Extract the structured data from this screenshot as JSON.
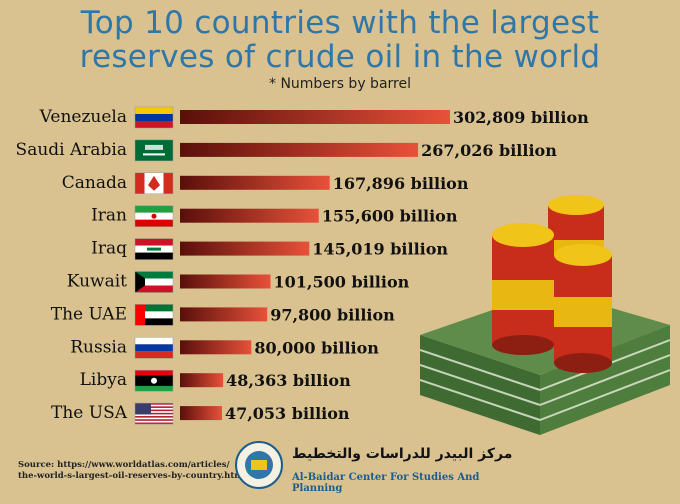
{
  "title_line1": "Top 10 countries with the largest",
  "title_line2": "reserves of crude oil in the world",
  "subtitle": "* Numbers by barrel",
  "source_line1": "Source: https://www.worldatlas.com/articles/",
  "source_line2": "the-world-s-largest-oil-reserves-by-country.html",
  "org_arabic": "مركز البيدر للدراسات والتخطيط",
  "org_english": "Al-Baidar Center For Studies And Planning",
  "colors": {
    "title": "#2f77a8",
    "bar_start": "#5a0f0a",
    "bar_end": "#e8513a",
    "background": "#d9c290"
  },
  "chart_data": {
    "type": "bar",
    "orientation": "horizontal",
    "categories": [
      "Venezuela",
      "Saudi Arabia",
      "Canada",
      "Iran",
      "Iraq",
      "Kuwait",
      "The UAE",
      "Russia",
      "Libya",
      "The USA"
    ],
    "values": [
      302809,
      267026,
      167896,
      155600,
      145019,
      101500,
      97800,
      80000,
      48363,
      47053
    ],
    "data_labels": [
      "302,809 billion",
      "267,026 billion",
      "167,896 billion",
      "155,600 billion",
      "145,019 billion",
      "101,500 billion",
      "97,800 billion",
      "80,000 billion",
      "48,363 billion",
      "47,053 billion"
    ],
    "flags": [
      "venezuela-flag-icon",
      "saudi-arabia-flag-icon",
      "canada-flag-icon",
      "iran-flag-icon",
      "iraq-flag-icon",
      "kuwait-flag-icon",
      "uae-flag-icon",
      "russia-flag-icon",
      "libya-flag-icon",
      "usa-flag-icon"
    ],
    "title": "Top 10 countries with the largest reserves of crude oil in the world",
    "xlabel": "",
    "ylabel": "",
    "grid": false,
    "legend": "none"
  }
}
